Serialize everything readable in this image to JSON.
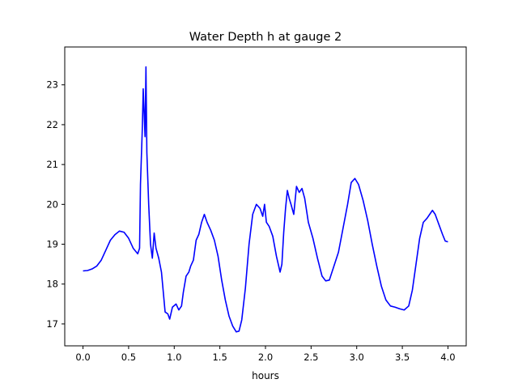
{
  "chart_data": {
    "type": "line",
    "title": "Water Depth h at gauge 2",
    "xlabel": "hours",
    "ylabel": "",
    "xlim": [
      -0.2,
      4.2
    ],
    "ylim": [
      16.45,
      23.95
    ],
    "xticks": [
      0.0,
      0.5,
      1.0,
      1.5,
      2.0,
      2.5,
      3.0,
      3.5,
      4.0
    ],
    "xtick_labels": [
      "0.0",
      "0.5",
      "1.0",
      "1.5",
      "2.0",
      "2.5",
      "3.0",
      "3.5",
      "4.0"
    ],
    "yticks": [
      17,
      18,
      19,
      20,
      21,
      22,
      23
    ],
    "ytick_labels": [
      "17",
      "18",
      "19",
      "20",
      "21",
      "22",
      "23"
    ],
    "grid": false,
    "legend": null,
    "series": [
      {
        "color": "#0000ff",
        "points": [
          [
            0.0,
            18.33
          ],
          [
            0.05,
            18.34
          ],
          [
            0.1,
            18.38
          ],
          [
            0.15,
            18.45
          ],
          [
            0.2,
            18.6
          ],
          [
            0.25,
            18.85
          ],
          [
            0.3,
            19.1
          ],
          [
            0.35,
            19.24
          ],
          [
            0.4,
            19.33
          ],
          [
            0.45,
            19.3
          ],
          [
            0.5,
            19.15
          ],
          [
            0.55,
            18.9
          ],
          [
            0.6,
            18.76
          ],
          [
            0.62,
            18.9
          ],
          [
            0.63,
            20.5
          ],
          [
            0.65,
            21.9
          ],
          [
            0.66,
            22.9
          ],
          [
            0.67,
            22.3
          ],
          [
            0.68,
            21.7
          ],
          [
            0.69,
            23.45
          ],
          [
            0.7,
            21.3
          ],
          [
            0.72,
            20.0
          ],
          [
            0.74,
            19.0
          ],
          [
            0.76,
            18.65
          ],
          [
            0.78,
            19.28
          ],
          [
            0.8,
            18.9
          ],
          [
            0.83,
            18.65
          ],
          [
            0.86,
            18.3
          ],
          [
            0.88,
            17.8
          ],
          [
            0.9,
            17.3
          ],
          [
            0.93,
            17.25
          ],
          [
            0.95,
            17.12
          ],
          [
            0.98,
            17.42
          ],
          [
            1.02,
            17.5
          ],
          [
            1.05,
            17.35
          ],
          [
            1.08,
            17.45
          ],
          [
            1.1,
            17.8
          ],
          [
            1.13,
            18.2
          ],
          [
            1.16,
            18.3
          ],
          [
            1.18,
            18.45
          ],
          [
            1.21,
            18.6
          ],
          [
            1.24,
            19.1
          ],
          [
            1.27,
            19.25
          ],
          [
            1.3,
            19.55
          ],
          [
            1.33,
            19.75
          ],
          [
            1.36,
            19.55
          ],
          [
            1.4,
            19.35
          ],
          [
            1.44,
            19.1
          ],
          [
            1.48,
            18.7
          ],
          [
            1.52,
            18.1
          ],
          [
            1.56,
            17.6
          ],
          [
            1.6,
            17.2
          ],
          [
            1.64,
            16.95
          ],
          [
            1.68,
            16.8
          ],
          [
            1.71,
            16.82
          ],
          [
            1.74,
            17.1
          ],
          [
            1.78,
            17.9
          ],
          [
            1.82,
            19.0
          ],
          [
            1.86,
            19.75
          ],
          [
            1.9,
            20.0
          ],
          [
            1.94,
            19.9
          ],
          [
            1.97,
            19.7
          ],
          [
            1.99,
            20.0
          ],
          [
            2.01,
            19.55
          ],
          [
            2.04,
            19.45
          ],
          [
            2.08,
            19.2
          ],
          [
            2.12,
            18.7
          ],
          [
            2.16,
            18.3
          ],
          [
            2.18,
            18.5
          ],
          [
            2.2,
            19.3
          ],
          [
            2.22,
            19.9
          ],
          [
            2.24,
            20.35
          ],
          [
            2.26,
            20.15
          ],
          [
            2.28,
            20.0
          ],
          [
            2.31,
            19.75
          ],
          [
            2.34,
            20.45
          ],
          [
            2.37,
            20.3
          ],
          [
            2.4,
            20.4
          ],
          [
            2.43,
            20.15
          ],
          [
            2.47,
            19.55
          ],
          [
            2.52,
            19.15
          ],
          [
            2.57,
            18.65
          ],
          [
            2.62,
            18.2
          ],
          [
            2.66,
            18.08
          ],
          [
            2.7,
            18.1
          ],
          [
            2.75,
            18.45
          ],
          [
            2.8,
            18.8
          ],
          [
            2.85,
            19.4
          ],
          [
            2.9,
            20.0
          ],
          [
            2.94,
            20.55
          ],
          [
            2.98,
            20.65
          ],
          [
            3.02,
            20.5
          ],
          [
            3.07,
            20.1
          ],
          [
            3.12,
            19.6
          ],
          [
            3.17,
            19.0
          ],
          [
            3.22,
            18.45
          ],
          [
            3.27,
            17.95
          ],
          [
            3.32,
            17.6
          ],
          [
            3.37,
            17.45
          ],
          [
            3.42,
            17.42
          ],
          [
            3.47,
            17.38
          ],
          [
            3.52,
            17.35
          ],
          [
            3.57,
            17.45
          ],
          [
            3.61,
            17.85
          ],
          [
            3.65,
            18.5
          ],
          [
            3.69,
            19.15
          ],
          [
            3.73,
            19.55
          ],
          [
            3.77,
            19.65
          ],
          [
            3.8,
            19.75
          ],
          [
            3.83,
            19.85
          ],
          [
            3.86,
            19.75
          ],
          [
            3.9,
            19.5
          ],
          [
            3.94,
            19.25
          ],
          [
            3.97,
            19.08
          ],
          [
            4.0,
            19.06
          ]
        ]
      }
    ]
  }
}
